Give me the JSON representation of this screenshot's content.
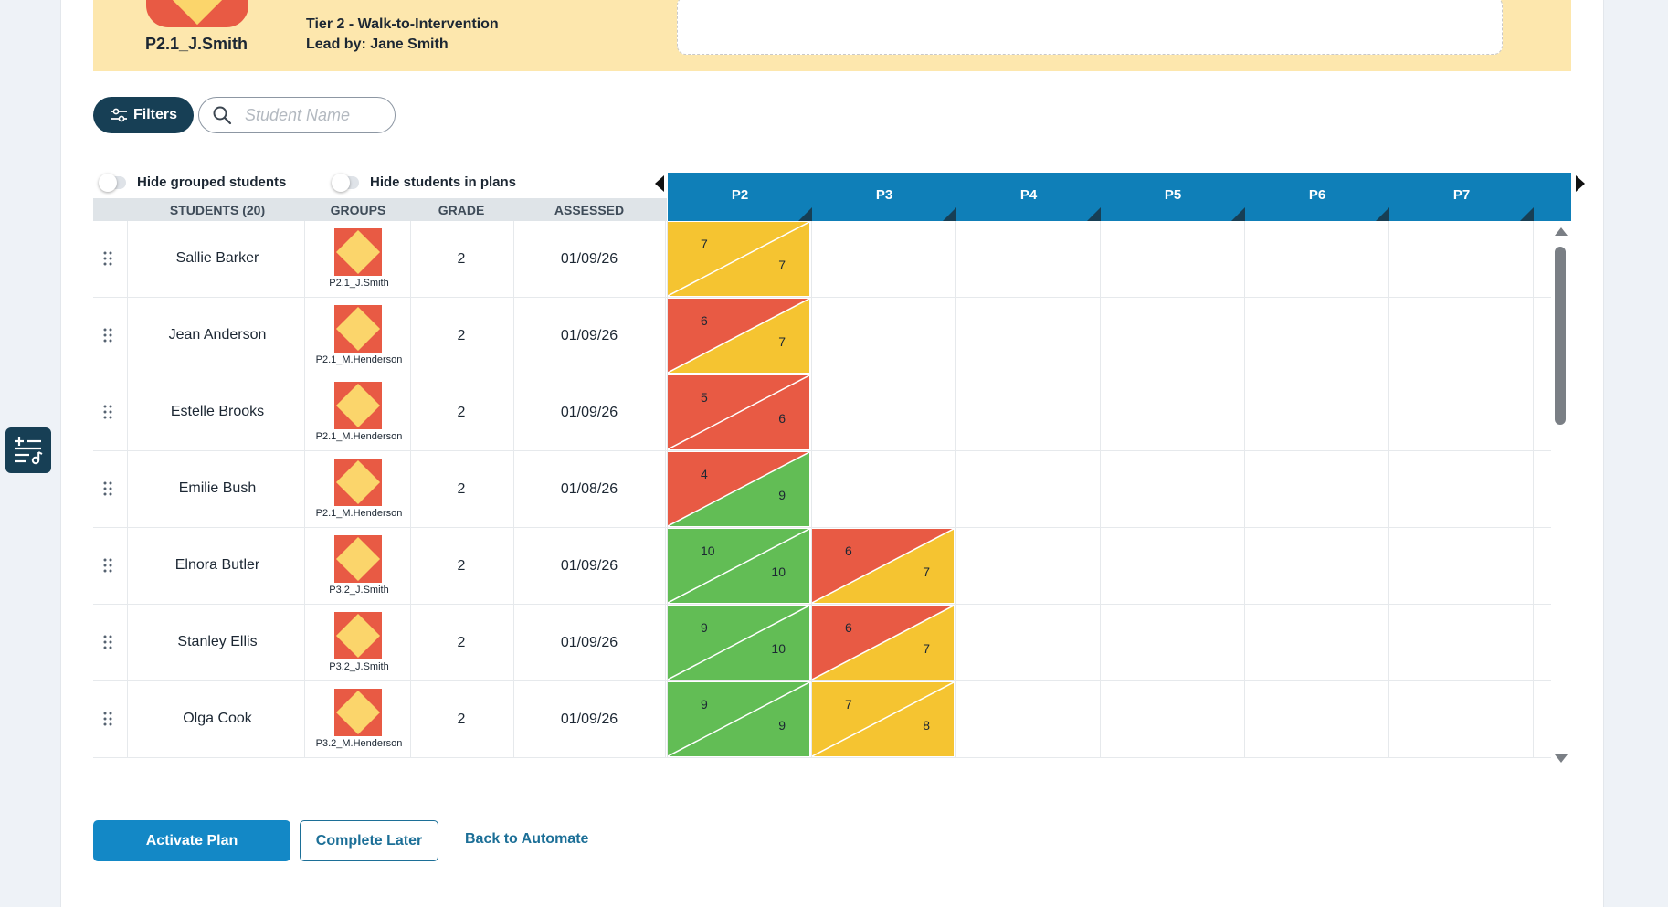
{
  "header": {
    "group_name": "P2.1_J.Smith",
    "tier": "Tier 2 - Walk-to-Intervention",
    "lead": "Lead by: Jane Smith"
  },
  "toolbar": {
    "filters_label": "Filters",
    "search_placeholder": "Student Name"
  },
  "toggles": {
    "hide_grouped": "Hide grouped students",
    "hide_in_plans": "Hide students in plans"
  },
  "columns": {
    "students": "STUDENTS (20)",
    "groups": "GROUPS",
    "grade": "GRADE",
    "assessed": "ASSESSED"
  },
  "periods": [
    "P2",
    "P3",
    "P4",
    "P5",
    "P6",
    "P7"
  ],
  "colors": {
    "red": "#e85a44",
    "yellow": "#f5c431",
    "green": "#62bd55",
    "header_blue": "#0f7fb8",
    "dark_navy": "#173f55"
  },
  "students": [
    {
      "name": "Sallie Barker",
      "group": "P2.1_J.Smith",
      "grade": "2",
      "assessed": "01/09/26",
      "scores": [
        {
          "top": "7",
          "bottom": "7",
          "top_color": "yellow",
          "bottom_color": "yellow"
        }
      ]
    },
    {
      "name": "Jean Anderson",
      "group": "P2.1_M.Henderson",
      "grade": "2",
      "assessed": "01/09/26",
      "scores": [
        {
          "top": "6",
          "bottom": "7",
          "top_color": "red",
          "bottom_color": "yellow"
        }
      ]
    },
    {
      "name": "Estelle Brooks",
      "group": "P2.1_M.Henderson",
      "grade": "2",
      "assessed": "01/09/26",
      "scores": [
        {
          "top": "5",
          "bottom": "6",
          "top_color": "red",
          "bottom_color": "red"
        }
      ]
    },
    {
      "name": "Emilie Bush",
      "group": "P2.1_M.Henderson",
      "grade": "2",
      "assessed": "01/08/26",
      "scores": [
        {
          "top": "4",
          "bottom": "9",
          "top_color": "red",
          "bottom_color": "green"
        }
      ]
    },
    {
      "name": "Elnora Butler",
      "group": "P3.2_J.Smith",
      "grade": "2",
      "assessed": "01/09/26",
      "scores": [
        {
          "top": "10",
          "bottom": "10",
          "top_color": "green",
          "bottom_color": "green"
        },
        {
          "top": "6",
          "bottom": "7",
          "top_color": "red",
          "bottom_color": "yellow"
        }
      ]
    },
    {
      "name": "Stanley Ellis",
      "group": "P3.2_J.Smith",
      "grade": "2",
      "assessed": "01/09/26",
      "scores": [
        {
          "top": "9",
          "bottom": "10",
          "top_color": "green",
          "bottom_color": "green"
        },
        {
          "top": "6",
          "bottom": "7",
          "top_color": "red",
          "bottom_color": "yellow"
        }
      ]
    },
    {
      "name": "Olga Cook",
      "group": "P3.2_M.Henderson",
      "grade": "2",
      "assessed": "01/09/26",
      "scores": [
        {
          "top": "9",
          "bottom": "9",
          "top_color": "green",
          "bottom_color": "green"
        },
        {
          "top": "7",
          "bottom": "8",
          "top_color": "yellow",
          "bottom_color": "yellow"
        }
      ]
    }
  ],
  "footer": {
    "activate_label": "Activate Plan",
    "later_label": "Complete Later",
    "back_label": "Back to Automate"
  }
}
